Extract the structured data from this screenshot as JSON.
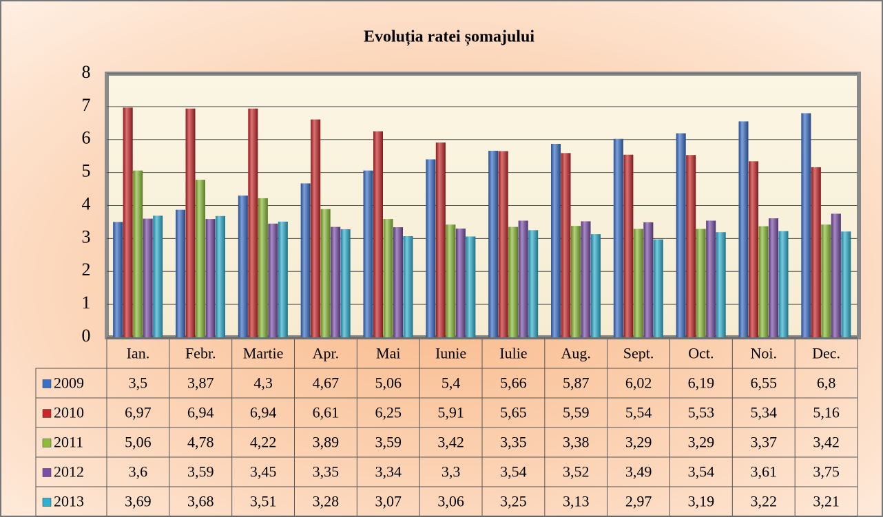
{
  "chart_data": {
    "type": "bar",
    "title": "Evoluția ratei șomajului",
    "categories": [
      "Ian.",
      "Febr.",
      "Martie",
      "Apr.",
      "Mai",
      "Iunie",
      "Iulie",
      "Aug.",
      "Sept.",
      "Oct.",
      "Noi.",
      "Dec."
    ],
    "series": [
      {
        "name": "2009",
        "color": "#3a6fc8",
        "values": [
          3.5,
          3.87,
          4.3,
          4.67,
          5.06,
          5.4,
          5.66,
          5.87,
          6.02,
          6.19,
          6.55,
          6.8
        ],
        "value_labels": [
          "3,5",
          "3,87",
          "4,3",
          "4,67",
          "5,06",
          "5,4",
          "5,66",
          "5,87",
          "6,02",
          "6,19",
          "6,55",
          "6,8"
        ]
      },
      {
        "name": "2010",
        "color": "#c8282a",
        "values": [
          6.97,
          6.94,
          6.94,
          6.61,
          6.25,
          5.91,
          5.65,
          5.59,
          5.54,
          5.53,
          5.34,
          5.16
        ],
        "value_labels": [
          "6,97",
          "6,94",
          "6,94",
          "6,61",
          "6,25",
          "5,91",
          "5,65",
          "5,59",
          "5,54",
          "5,53",
          "5,34",
          "5,16"
        ]
      },
      {
        "name": "2011",
        "color": "#8cbc38",
        "values": [
          5.06,
          4.78,
          4.22,
          3.89,
          3.59,
          3.42,
          3.35,
          3.38,
          3.29,
          3.29,
          3.37,
          3.42
        ],
        "value_labels": [
          "5,06",
          "4,78",
          "4,22",
          "3,89",
          "3,59",
          "3,42",
          "3,35",
          "3,38",
          "3,29",
          "3,29",
          "3,37",
          "3,42"
        ]
      },
      {
        "name": "2012",
        "color": "#7a4ea8",
        "values": [
          3.6,
          3.59,
          3.45,
          3.35,
          3.34,
          3.3,
          3.54,
          3.52,
          3.49,
          3.54,
          3.61,
          3.75
        ],
        "value_labels": [
          "3,6",
          "3,59",
          "3,45",
          "3,35",
          "3,34",
          "3,3",
          "3,54",
          "3,52",
          "3,49",
          "3,54",
          "3,61",
          "3,75"
        ]
      },
      {
        "name": "2013",
        "color": "#2eb0d0",
        "values": [
          3.69,
          3.68,
          3.51,
          3.28,
          3.07,
          3.06,
          3.25,
          3.13,
          2.97,
          3.19,
          3.22,
          3.21
        ],
        "value_labels": [
          "3,69",
          "3,68",
          "3,51",
          "3,28",
          "3,07",
          "3,06",
          "3,25",
          "3,13",
          "2,97",
          "3,19",
          "3,22",
          "3,21"
        ]
      }
    ],
    "ylim": [
      0,
      8
    ],
    "yticks": [
      0,
      1,
      2,
      3,
      4,
      5,
      6,
      7,
      8
    ],
    "grid": true
  }
}
